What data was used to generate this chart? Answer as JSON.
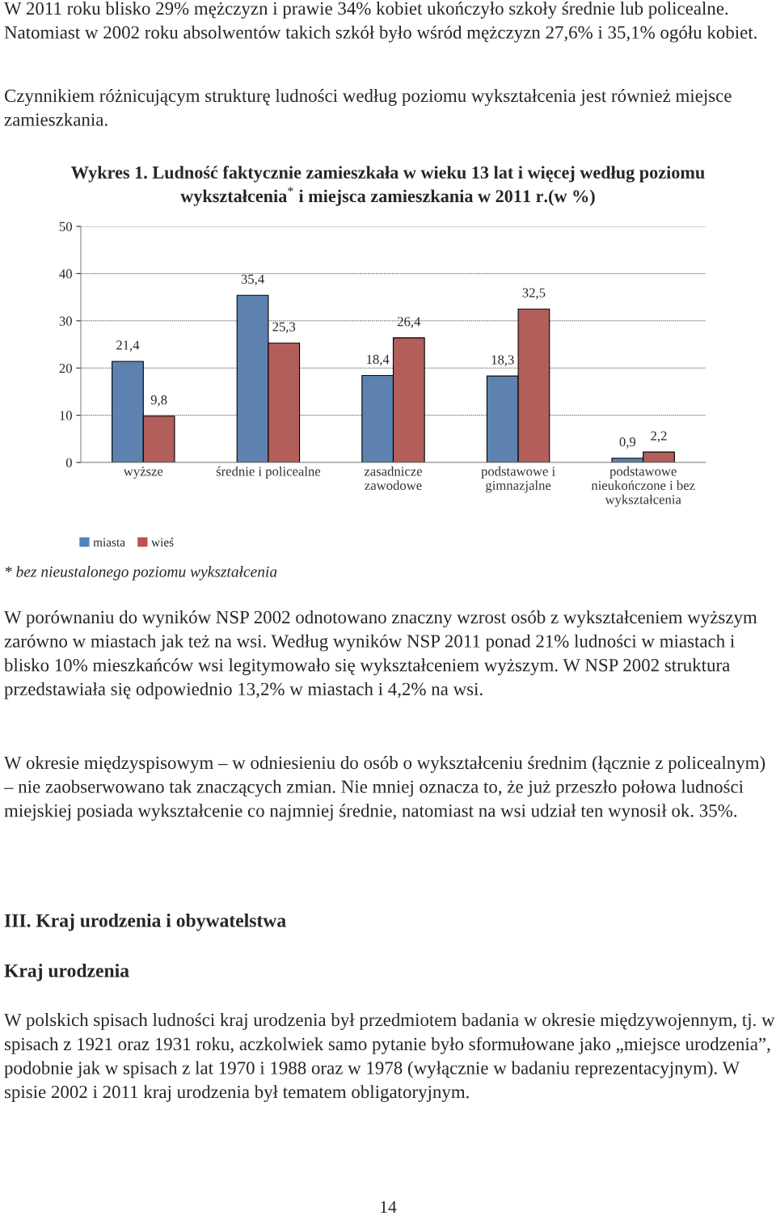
{
  "chart_data": {
    "type": "bar",
    "title": "Wykres 1. Ludność faktycznie zamieszkała w wieku 13 lat i więcej według poziomu\nwykształcenia$^{*}$ i miejsca zamieszkania w 2011 r.(w %)",
    "categories": [
      "wyższe",
      "średnie i policealne",
      "zasadnicze\nzawodowe",
      "podstawowe i\ngimnazjalne",
      "podstawowe\nnieukończone i bez\nwykształcenia"
    ],
    "series": [
      {
        "name": "miasta",
        "color": "#4f81bd",
        "values": [
          21.4,
          35.4,
          18.4,
          18.3,
          0.9
        ],
        "value_labels": [
          "21,4",
          "35,4",
          "18,4",
          "18,3",
          "0,9"
        ]
      },
      {
        "name": "wieś",
        "color": "#c0504d",
        "values": [
          9.8,
          25.3,
          26.4,
          32.5,
          2.2
        ],
        "value_labels": [
          "9,8",
          "25,3",
          "26,4",
          "32,5",
          "2,2"
        ]
      }
    ],
    "ylim": [
      0,
      50
    ],
    "yticks": [
      {
        "value": 0,
        "label": "0"
      },
      {
        "value": 10,
        "label": "10"
      },
      {
        "value": 20,
        "label": "20"
      },
      {
        "value": 30,
        "label": "30"
      },
      {
        "value": 40,
        "label": "40"
      },
      {
        "value": 50,
        "label": "50"
      }
    ],
    "grid": "y",
    "legend": "bottom left",
    "annotations": [
      "W 2011 roku blisko 29% mężczyzn i prawie 34% kobiet ukończyło szkoły średnie lub policealne. Natomiast w 2002 roku absolwentów takich szkół było wśród mężczyzn 27,6% i 35,1% ogółu kobiet.",
      "Czynnikiem różnicującym strukturę ludności według poziomu wykształcenia jest również miejsce zamieszkania.",
      "* bez nieustalonego poziomu wykształcenia",
      "W porównaniu do wyników NSP 2002 odnotowano znaczny wzrost osób z wykształceniem wyższym zarówno w miastach jak też na wsi. Według wyników NSP 2011 ponad 21% ludności w miastach i blisko 10% mieszkańców wsi legitymowało się wykształceniem wyższym. W NSP 2002 struktura przedstawiała się odpowiednio 13,2% w miastach i 4,2% na wsi.",
      "W okresie międzyspisowym – w odniesieniu do osób o wykształceniu średnim (łącznie z policealnym) – nie zaobserwowano tak znaczących zmian. Nie mniej oznacza to, że już przeszło połowa ludności miejskiej posiada wykształcenie co najmniej średnie, natomiast na wsi udział ten wynosił ok. 35%.",
      "III. Kraj urodzenia i obywatelstwa",
      "Kraj urodzenia",
      "W polskich spisach ludności kraj urodzenia był przedmiotem badania w okresie międzywojennym, tj. w spisach z 1921 oraz 1931 roku, aczkolwiek samo pytanie było sformułowane jako „miejsce urodzenia”, podobnie jak w spisach z lat 1970 i 1988 oraz w 1978 (wyłącznie w badaniu reprezentacyjnym). W spisie 2002 i 2011 kraj urodzenia był tematem obligatoryjnym.",
      "14"
    ]
  }
}
